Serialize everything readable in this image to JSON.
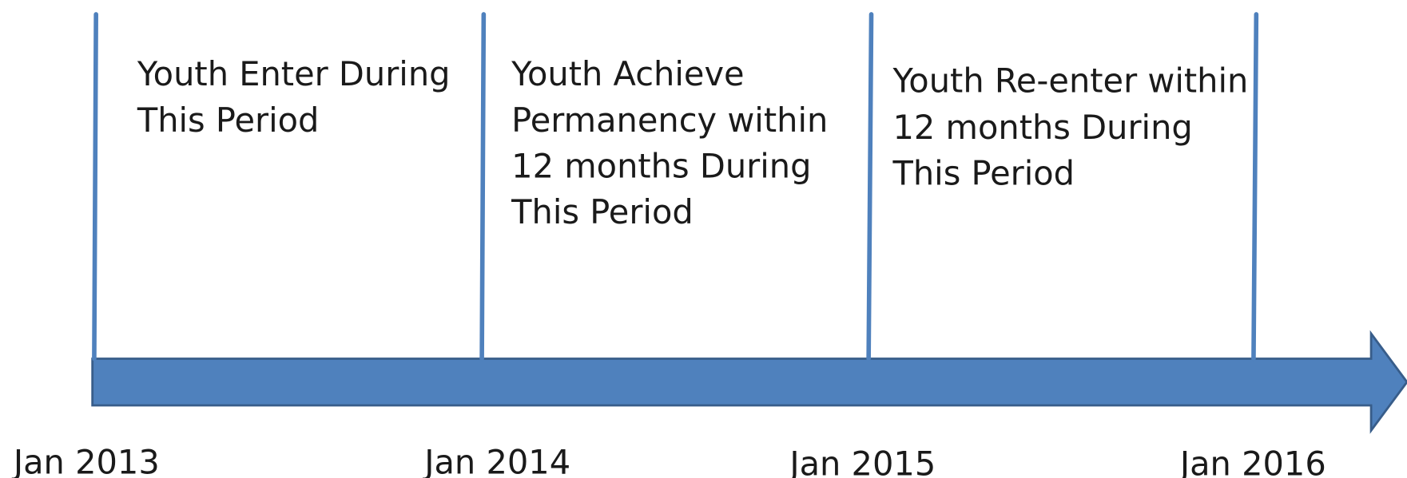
{
  "periods": [
    {
      "lines": [
        "Youth Enter During",
        "This Period"
      ]
    },
    {
      "lines": [
        "Youth Achieve",
        "Permanency within",
        "12 months During",
        "This Period"
      ]
    },
    {
      "lines": [
        "Youth Re-enter within",
        "12 months During",
        "This Period"
      ]
    }
  ],
  "dates": [
    "Jan 2013",
    "Jan 2014",
    "Jan 2015",
    "Jan 2016"
  ]
}
